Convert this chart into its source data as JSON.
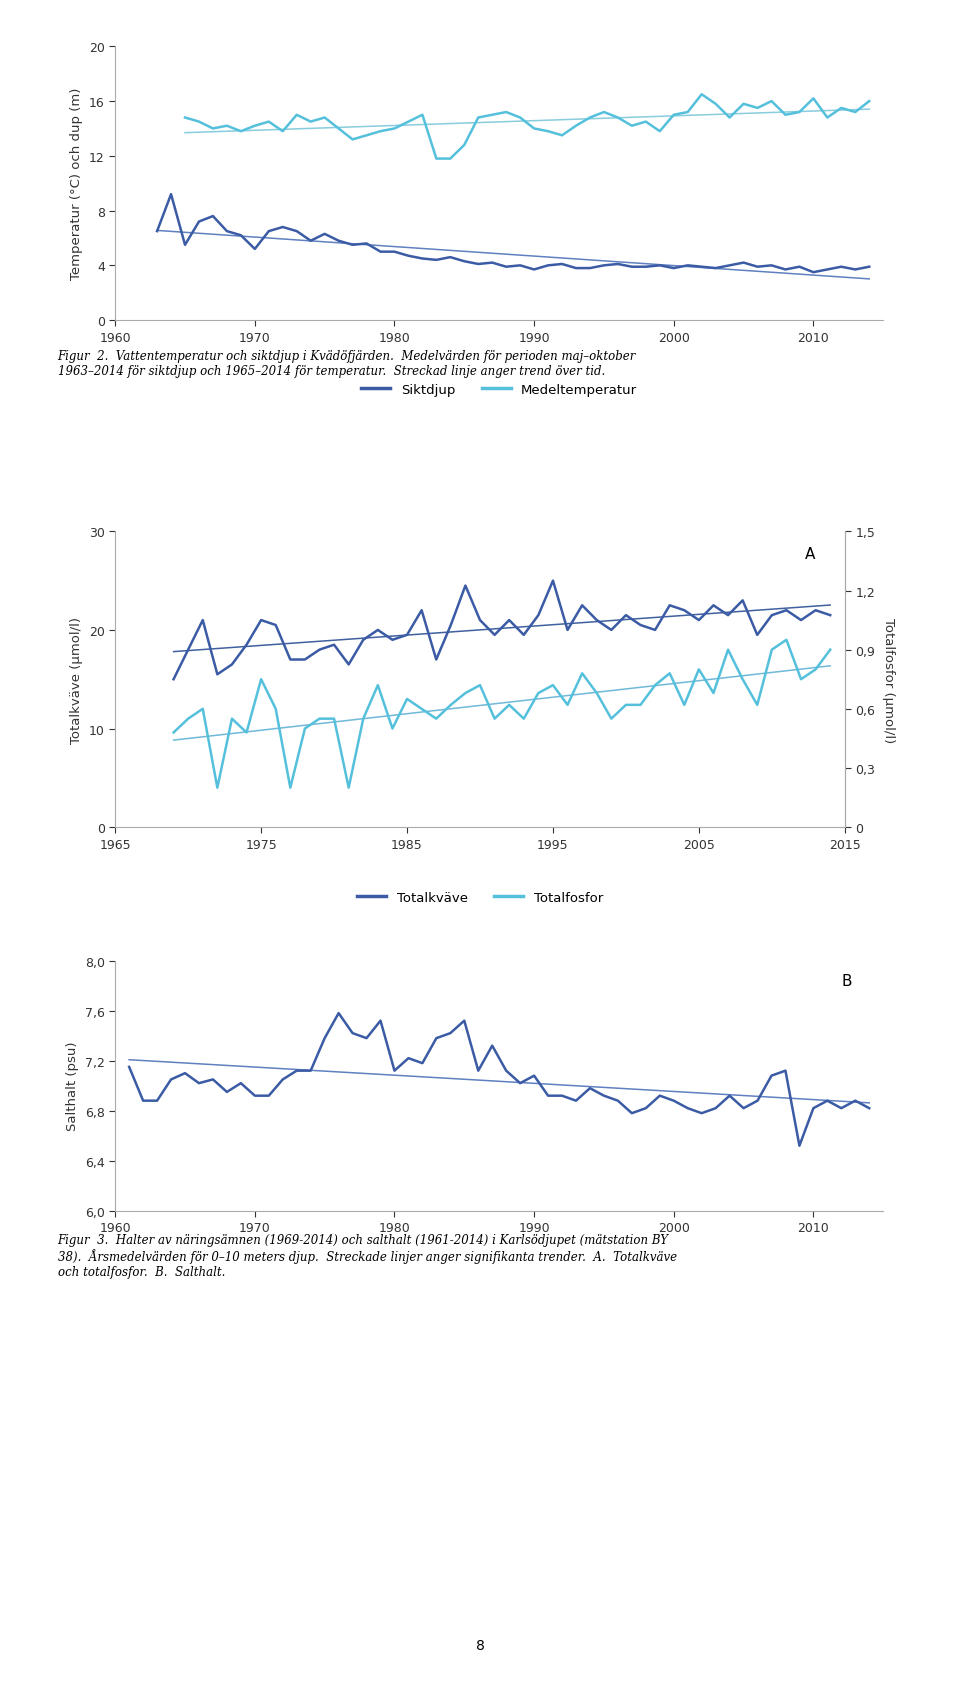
{
  "fig1": {
    "ylabel": "Temperatur (°C) och dup (m)",
    "xlim": [
      1960,
      2015
    ],
    "ylim": [
      0,
      20
    ],
    "yticks": [
      0,
      4,
      8,
      12,
      16,
      20
    ],
    "xticks": [
      1960,
      1970,
      1980,
      1990,
      2000,
      2010
    ],
    "siktdjup_x": [
      1963,
      1964,
      1965,
      1966,
      1967,
      1968,
      1969,
      1970,
      1971,
      1972,
      1973,
      1974,
      1975,
      1976,
      1977,
      1978,
      1979,
      1980,
      1981,
      1982,
      1983,
      1984,
      1985,
      1986,
      1987,
      1988,
      1989,
      1990,
      1991,
      1992,
      1993,
      1994,
      1995,
      1996,
      1997,
      1998,
      1999,
      2000,
      2001,
      2002,
      2003,
      2004,
      2005,
      2006,
      2007,
      2008,
      2009,
      2010,
      2011,
      2012,
      2013,
      2014
    ],
    "siktdjup_y": [
      6.5,
      9.2,
      5.5,
      7.2,
      7.6,
      6.5,
      6.2,
      5.2,
      6.5,
      6.8,
      6.5,
      5.8,
      6.3,
      5.8,
      5.5,
      5.6,
      5.0,
      5.0,
      4.7,
      4.5,
      4.4,
      4.6,
      4.3,
      4.1,
      4.2,
      3.9,
      4.0,
      3.7,
      4.0,
      4.1,
      3.8,
      3.8,
      4.0,
      4.1,
      3.9,
      3.9,
      4.0,
      3.8,
      4.0,
      3.9,
      3.8,
      4.0,
      4.2,
      3.9,
      4.0,
      3.7,
      3.9,
      3.5,
      3.7,
      3.9,
      3.7,
      3.9
    ],
    "medeltemp_x": [
      1965,
      1966,
      1967,
      1968,
      1969,
      1970,
      1971,
      1972,
      1973,
      1974,
      1975,
      1976,
      1977,
      1978,
      1979,
      1980,
      1981,
      1982,
      1983,
      1984,
      1985,
      1986,
      1987,
      1988,
      1989,
      1990,
      1991,
      1992,
      1993,
      1994,
      1995,
      1996,
      1997,
      1998,
      1999,
      2000,
      2001,
      2002,
      2003,
      2004,
      2005,
      2006,
      2007,
      2008,
      2009,
      2010,
      2011,
      2012,
      2013,
      2014
    ],
    "medeltemp_y": [
      14.8,
      14.5,
      14.0,
      14.2,
      13.8,
      14.2,
      14.5,
      13.8,
      15.0,
      14.5,
      14.8,
      14.0,
      13.2,
      13.5,
      13.8,
      14.0,
      14.5,
      15.0,
      11.8,
      11.8,
      12.8,
      14.8,
      15.0,
      15.2,
      14.8,
      14.0,
      13.8,
      13.5,
      14.2,
      14.8,
      15.2,
      14.8,
      14.2,
      14.5,
      13.8,
      15.0,
      15.2,
      16.5,
      15.8,
      14.8,
      15.8,
      15.5,
      16.0,
      15.0,
      15.2,
      16.2,
      14.8,
      15.5,
      15.2,
      16.0
    ],
    "legend_siktdjup": "Siktdjup",
    "legend_medeltemp": "Medeltemperatur",
    "color_siktdjup": "#3B5BA5",
    "color_medeltemp": "#55C0DC",
    "color_trend_siktdjup": "#6080C0",
    "color_trend_medeltemp": "#88CCDD"
  },
  "caption1": "Figur  2.  Vattentemperatur och siktdjup i Kvädöfjärden.  Medelvärden för perioden maj–oktober\n1963–2014 för siktdjup och 1965–2014 för temperatur.  Streckad linje anger trend över tid.",
  "fig2": {
    "ylabel_left": "Totalkväve (µmol/l)",
    "ylabel_right": "Totalfosfor (µmol/l)",
    "xlim": [
      1965,
      2015
    ],
    "ylim_left": [
      0,
      30
    ],
    "ylim_right": [
      0,
      1.5
    ],
    "yticks_left": [
      0,
      10,
      20,
      30
    ],
    "yticks_right": [
      0,
      0.3,
      0.6,
      0.9,
      1.2,
      1.5
    ],
    "xticks": [
      1965,
      1975,
      1985,
      1995,
      2005,
      2015
    ],
    "kvaeve_x": [
      1969,
      1970,
      1971,
      1972,
      1973,
      1974,
      1975,
      1976,
      1977,
      1978,
      1979,
      1980,
      1981,
      1982,
      1983,
      1984,
      1985,
      1986,
      1987,
      1988,
      1989,
      1990,
      1991,
      1992,
      1993,
      1994,
      1995,
      1996,
      1997,
      1998,
      1999,
      2000,
      2001,
      2002,
      2003,
      2004,
      2005,
      2006,
      2007,
      2008,
      2009,
      2010,
      2011,
      2012,
      2013,
      2014
    ],
    "kvaeve_y": [
      15.0,
      18.0,
      21.0,
      15.5,
      16.5,
      18.5,
      21.0,
      20.5,
      17.0,
      17.0,
      18.0,
      18.5,
      16.5,
      19.0,
      20.0,
      19.0,
      19.5,
      22.0,
      17.0,
      20.5,
      24.5,
      21.0,
      19.5,
      21.0,
      19.5,
      21.5,
      25.0,
      20.0,
      22.5,
      21.0,
      20.0,
      21.5,
      20.5,
      20.0,
      22.5,
      22.0,
      21.0,
      22.5,
      21.5,
      23.0,
      19.5,
      21.5,
      22.0,
      21.0,
      22.0,
      21.5
    ],
    "fosfor_x": [
      1969,
      1970,
      1971,
      1972,
      1973,
      1974,
      1975,
      1976,
      1977,
      1978,
      1979,
      1980,
      1981,
      1982,
      1983,
      1984,
      1985,
      1986,
      1987,
      1988,
      1989,
      1990,
      1991,
      1992,
      1993,
      1994,
      1995,
      1996,
      1997,
      1998,
      1999,
      2000,
      2001,
      2002,
      2003,
      2004,
      2005,
      2006,
      2007,
      2008,
      2009,
      2010,
      2011,
      2012,
      2013,
      2014
    ],
    "fosfor_y": [
      0.48,
      0.55,
      0.6,
      0.2,
      0.55,
      0.48,
      0.75,
      0.6,
      0.2,
      0.5,
      0.55,
      0.55,
      0.2,
      0.55,
      0.72,
      0.5,
      0.65,
      0.6,
      0.55,
      0.62,
      0.68,
      0.72,
      0.55,
      0.62,
      0.55,
      0.68,
      0.72,
      0.62,
      0.78,
      0.68,
      0.55,
      0.62,
      0.62,
      0.72,
      0.78,
      0.62,
      0.8,
      0.68,
      0.9,
      0.75,
      0.62,
      0.9,
      0.95,
      0.75,
      0.8,
      0.9
    ],
    "label_A": "A",
    "legend_kvaeve": "Totalkväve",
    "legend_fosfor": "Totalfosfor",
    "color_kvaeve": "#3B5BA5",
    "color_fosfor": "#55C0DC",
    "color_trend_kvaeve": "#4060A0",
    "color_trend_fosfor": "#70B8D8"
  },
  "fig3": {
    "ylabel": "Salthalt (psu)",
    "xlim": [
      1960,
      2015
    ],
    "ylim": [
      6,
      8
    ],
    "yticks": [
      6,
      6.4,
      6.8,
      7.2,
      7.6,
      8
    ],
    "xticks": [
      1960,
      1970,
      1980,
      1990,
      2000,
      2010
    ],
    "salthalt_x": [
      1961,
      1962,
      1963,
      1964,
      1965,
      1966,
      1967,
      1968,
      1969,
      1970,
      1971,
      1972,
      1973,
      1974,
      1975,
      1976,
      1977,
      1978,
      1979,
      1980,
      1981,
      1982,
      1983,
      1984,
      1985,
      1986,
      1987,
      1988,
      1989,
      1990,
      1991,
      1992,
      1993,
      1994,
      1995,
      1996,
      1997,
      1998,
      1999,
      2000,
      2001,
      2002,
      2003,
      2004,
      2005,
      2006,
      2007,
      2008,
      2009,
      2010,
      2011,
      2012,
      2013,
      2014
    ],
    "salthalt_y": [
      7.15,
      6.88,
      6.88,
      7.05,
      7.1,
      7.02,
      7.05,
      6.95,
      7.02,
      6.92,
      6.92,
      7.05,
      7.12,
      7.12,
      7.38,
      7.58,
      7.42,
      7.38,
      7.52,
      7.12,
      7.22,
      7.18,
      7.38,
      7.42,
      7.52,
      7.12,
      7.32,
      7.12,
      7.02,
      7.08,
      6.92,
      6.92,
      6.88,
      6.98,
      6.92,
      6.88,
      6.78,
      6.82,
      6.92,
      6.88,
      6.82,
      6.78,
      6.82,
      6.92,
      6.82,
      6.88,
      7.08,
      7.12,
      6.52,
      6.82,
      6.88,
      6.82,
      6.88,
      6.82
    ],
    "label_B": "B",
    "color_salthalt": "#3B5BA5",
    "color_trend": "#6080C0"
  },
  "caption3": "Figur  3.  Halter av näringsämnen (1969-2014) och salthalt (1961-2014) i Karlsödjupet (mätstation BY\n38).  Årsmedelvärden för 0–10 meters djup.  Streckade linjer anger signifikanta trender.  A.  Totalkväve\noch totalfosfor.  B.  Salthalt.",
  "page_number": "8"
}
